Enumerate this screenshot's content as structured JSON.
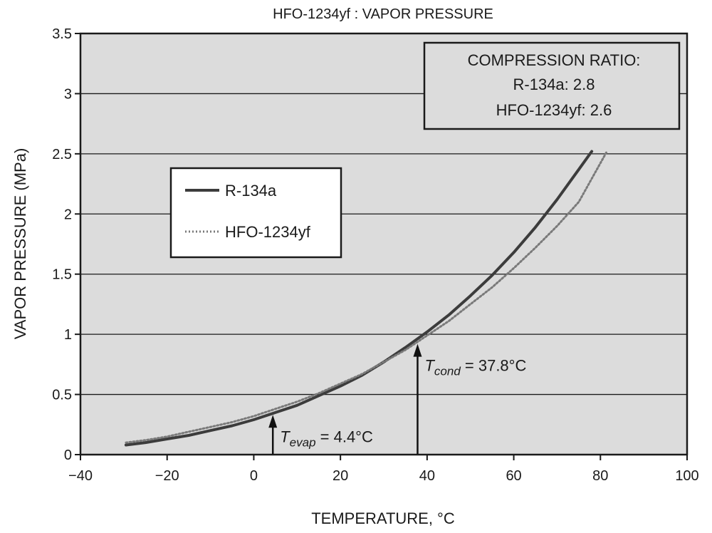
{
  "chart_data": {
    "type": "line",
    "title": "HFO-1234yf : VAPOR PRESSURE",
    "xlabel": "TEMPERATURE, °C",
    "ylabel": "VAPOR PRESSURE (MPa)",
    "xlim": [
      -40,
      100
    ],
    "ylim": [
      0,
      3.5
    ],
    "x_ticks": [
      -40,
      -20,
      0,
      20,
      40,
      60,
      80,
      100
    ],
    "x_tick_labels": [
      "−40",
      "−20",
      "0",
      "20",
      "40",
      "60",
      "80",
      "100"
    ],
    "y_ticks": [
      0,
      0.5,
      1,
      1.5,
      2,
      2.5,
      3,
      3.5
    ],
    "y_tick_labels": [
      "0",
      "0.5",
      "1",
      "1.5",
      "2",
      "2.5",
      "3",
      "3.5"
    ],
    "grid": "horizontal",
    "background_color": "#dcdcdc",
    "legend_placement": "upper-left",
    "series": [
      {
        "name": "R-134a",
        "style": "solid",
        "color": "#3c3c3c",
        "x": [
          -29.5,
          -25,
          -20,
          -15,
          -10,
          -5,
          0,
          5,
          10,
          15,
          20,
          25,
          30,
          35,
          40,
          45,
          50,
          55,
          60,
          65,
          70,
          75,
          78
        ],
        "y": [
          0.08,
          0.1,
          0.13,
          0.16,
          0.2,
          0.24,
          0.29,
          0.35,
          0.41,
          0.49,
          0.57,
          0.66,
          0.77,
          0.89,
          1.02,
          1.16,
          1.32,
          1.49,
          1.68,
          1.89,
          2.12,
          2.37,
          2.52
        ]
      },
      {
        "name": "HFO-1234yf",
        "style": "dotted",
        "color": "#7a7a7a",
        "x": [
          -29.5,
          -25,
          -20,
          -15,
          -10,
          -5,
          0,
          5,
          10,
          15,
          20,
          25,
          30,
          35,
          40,
          45,
          50,
          55,
          60,
          65,
          70,
          75,
          81.5
        ],
        "y": [
          0.1,
          0.12,
          0.15,
          0.19,
          0.23,
          0.27,
          0.32,
          0.38,
          0.44,
          0.51,
          0.59,
          0.67,
          0.77,
          0.87,
          0.99,
          1.11,
          1.25,
          1.39,
          1.55,
          1.72,
          1.9,
          2.1,
          2.52
        ]
      }
    ],
    "annotations": [
      {
        "kind": "arrow",
        "x": 4.4,
        "y_tip": 0.33,
        "label_main": "T",
        "label_sub": "evap",
        "label_rest": " = 4.4°C"
      },
      {
        "kind": "arrow",
        "x": 37.8,
        "y_tip": 0.92,
        "label_main": "T",
        "label_sub": "cond",
        "label_rest": " = 37.8°C"
      }
    ],
    "info_box": {
      "lines": [
        "COMPRESSION RATIO:",
        "R-134a: 2.8",
        "HFO-1234yf: 2.6"
      ],
      "placement": "top-right"
    }
  }
}
